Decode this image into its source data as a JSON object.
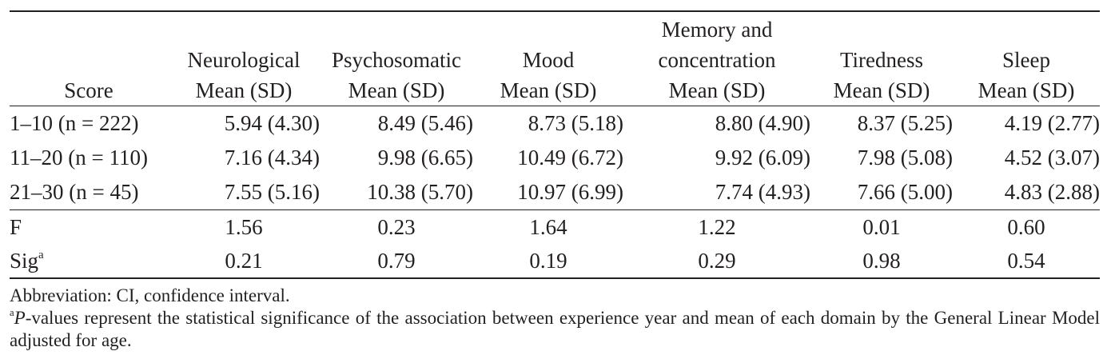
{
  "table": {
    "header": [
      {
        "lines": [
          "Score"
        ]
      },
      {
        "lines": [
          "Neurological",
          "Mean (SD)"
        ]
      },
      {
        "lines": [
          "Psychosomatic",
          "Mean (SD)"
        ]
      },
      {
        "lines": [
          "Mood",
          "Mean (SD)"
        ]
      },
      {
        "lines": [
          "Memory and",
          "concentration",
          "Mean (SD)"
        ]
      },
      {
        "lines": [
          "Tiredness",
          "Mean (SD)"
        ]
      },
      {
        "lines": [
          "Sleep",
          "Mean (SD)"
        ]
      }
    ],
    "rows": [
      {
        "label": "1–10 (n = 222)",
        "values": [
          "5.94 (4.30)",
          "8.49 (5.46)",
          "8.73 (5.18)",
          "8.80 (4.90)",
          "8.37 (5.25)",
          "4.19 (2.77)"
        ]
      },
      {
        "label": "11–20 (n = 110)",
        "values": [
          "7.16 (4.34)",
          "9.98 (6.65)",
          "10.49 (6.72)",
          "9.92 (6.09)",
          "7.98 (5.08)",
          "4.52 (3.07)"
        ]
      },
      {
        "label": "21–30 (n = 45)",
        "values": [
          "7.55 (5.16)",
          "10.38 (5.70)",
          "10.97 (6.99)",
          "7.74 (4.93)",
          "7.66 (5.00)",
          "4.83 (2.88)"
        ]
      }
    ],
    "stats": [
      {
        "label": "F",
        "values": [
          "1.56",
          "0.23",
          "1.64",
          "1.22",
          "0.01",
          "0.60"
        ]
      },
      {
        "label": "Sig",
        "label_sup": "a",
        "values": [
          "0.21",
          "0.79",
          "0.19",
          "0.29",
          "0.98",
          "0.54"
        ]
      }
    ]
  },
  "footnotes": [
    {
      "text": "Abbreviation: CI, confidence interval."
    },
    {
      "sup": "a",
      "italic": "P",
      "text": "-values represent the statistical significance of the association between experience year and mean of each domain by the General Linear Model adjusted for age."
    }
  ]
}
